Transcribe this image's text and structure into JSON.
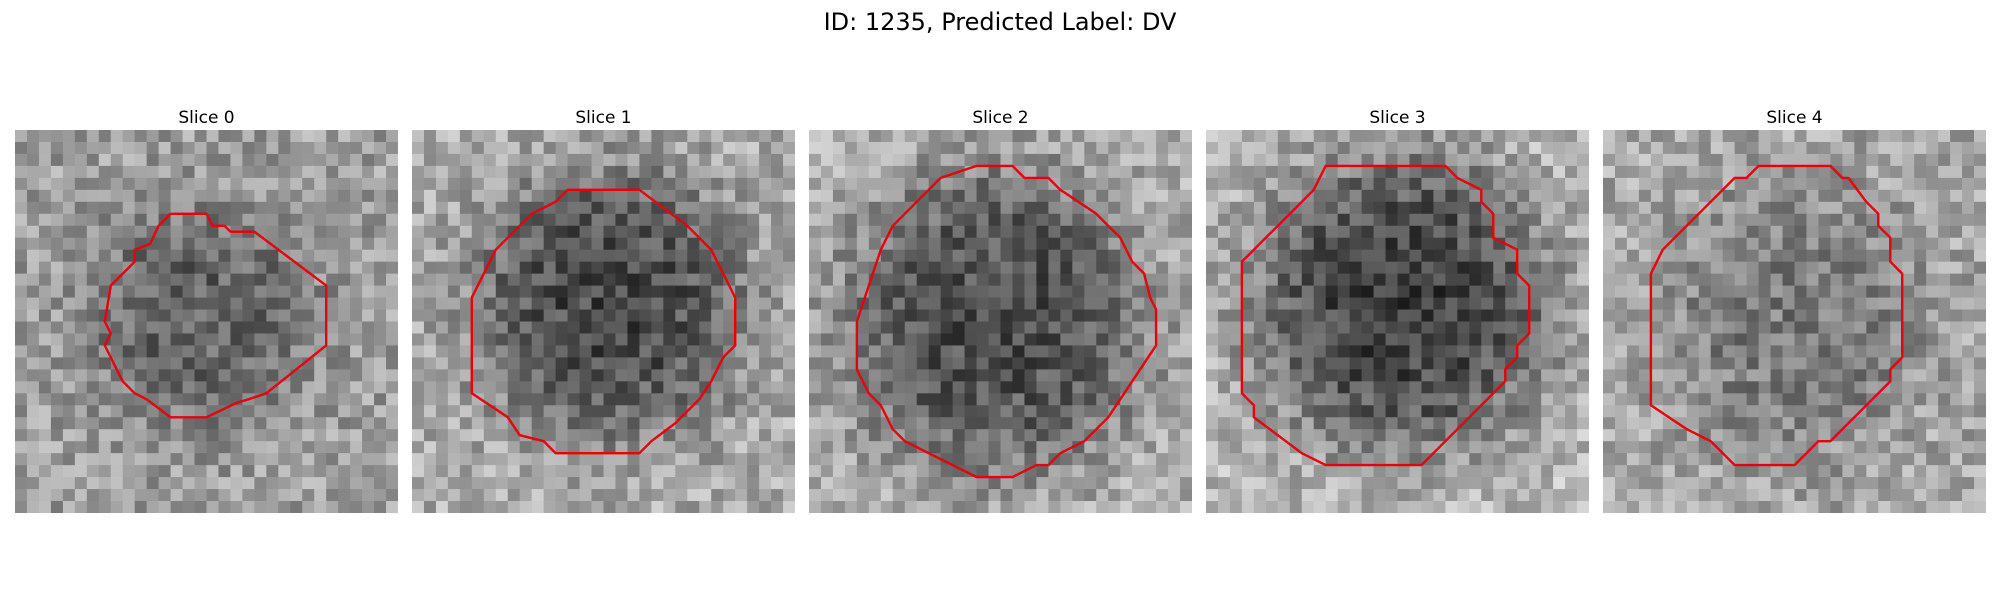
{
  "figure": {
    "title": "ID: 1235, Predicted Label: DV"
  },
  "panels": [
    {
      "title": "Slice 0"
    },
    {
      "title": "Slice 1"
    },
    {
      "title": "Slice 2"
    },
    {
      "title": "Slice 3"
    },
    {
      "title": "Slice 4"
    }
  ],
  "colors": {
    "contour": "#e8000b",
    "background": "#ffffff"
  }
}
